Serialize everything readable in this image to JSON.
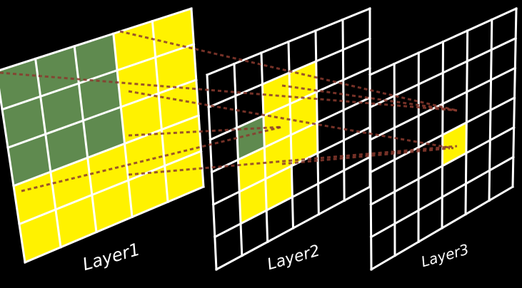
{
  "colors": {
    "background": "#000000",
    "grid_line": "#ffffff",
    "highlight": "#fff200",
    "receptive": "#5f8a4f",
    "connection": "#8a3a2e"
  },
  "layers": [
    {
      "label": "Layer1",
      "grid": 5,
      "yellow_cells": [
        [
          0,
          3
        ],
        [
          0,
          4
        ],
        [
          1,
          3
        ],
        [
          1,
          4
        ],
        [
          2,
          3
        ],
        [
          2,
          4
        ],
        [
          3,
          0
        ],
        [
          3,
          1
        ],
        [
          3,
          2
        ],
        [
          3,
          3
        ],
        [
          3,
          4
        ],
        [
          4,
          0
        ],
        [
          4,
          1
        ],
        [
          4,
          2
        ],
        [
          4,
          3
        ],
        [
          4,
          4
        ]
      ],
      "green_cells": [
        [
          0,
          0
        ],
        [
          0,
          1
        ],
        [
          0,
          2
        ],
        [
          1,
          0
        ],
        [
          1,
          1
        ],
        [
          1,
          2
        ],
        [
          2,
          0
        ],
        [
          2,
          1
        ],
        [
          2,
          2
        ]
      ]
    },
    {
      "label": "Layer2",
      "grid": 6,
      "yellow_cells": [
        [
          1,
          2
        ],
        [
          1,
          3
        ],
        [
          2,
          2
        ],
        [
          2,
          3
        ],
        [
          3,
          1
        ],
        [
          3,
          2
        ],
        [
          3,
          3
        ],
        [
          4,
          1
        ],
        [
          4,
          2
        ]
      ],
      "green_cells": [
        [
          2,
          1
        ]
      ]
    },
    {
      "label": "Layer3",
      "grid": 6,
      "yellow_cells": [
        [
          3,
          3
        ]
      ],
      "green_cells": []
    }
  ]
}
